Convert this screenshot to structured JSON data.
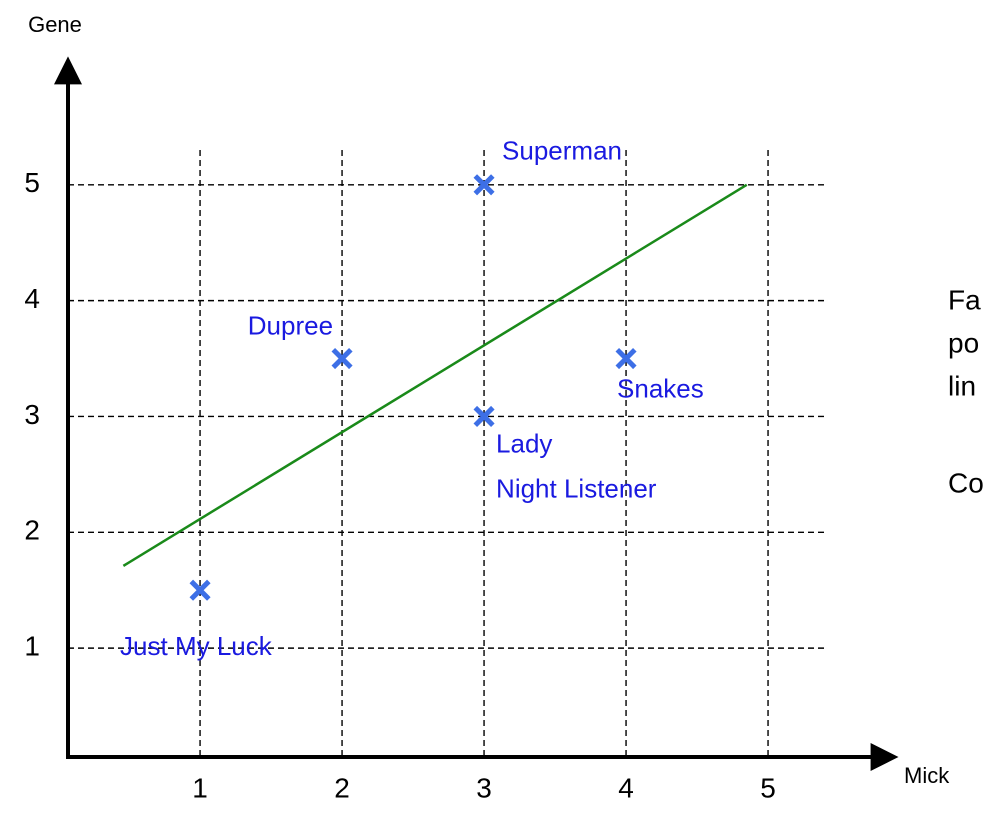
{
  "chart_data": {
    "type": "scatter",
    "xlabel": "Mick",
    "ylabel": "Gene",
    "x": [
      1,
      2,
      3,
      3,
      4
    ],
    "values": [
      1.5,
      3.5,
      3,
      5,
      3.5
    ],
    "labels": [
      [
        "Just My Luck"
      ],
      [
        "Dupree"
      ],
      [
        "Lady",
        "Night Listener"
      ],
      [
        "Superman"
      ],
      [
        "Snakes"
      ]
    ],
    "color": "#3d6fe6",
    "label_color": "#1a1ae0",
    "fit_line": {
      "x": [
        0.46,
        4.85
      ],
      "y": [
        1.71,
        5
      ],
      "color": "#1a8a1a"
    },
    "xlim": [
      0.07,
      5.88
    ],
    "ylim": [
      0.06,
      6.06
    ],
    "xticks": [
      1,
      2,
      3,
      4,
      5
    ],
    "yticks": [
      1,
      2,
      3,
      4,
      5
    ],
    "grid": true
  },
  "side_text": [
    "Fa",
    "po",
    "lin",
    "Co"
  ]
}
